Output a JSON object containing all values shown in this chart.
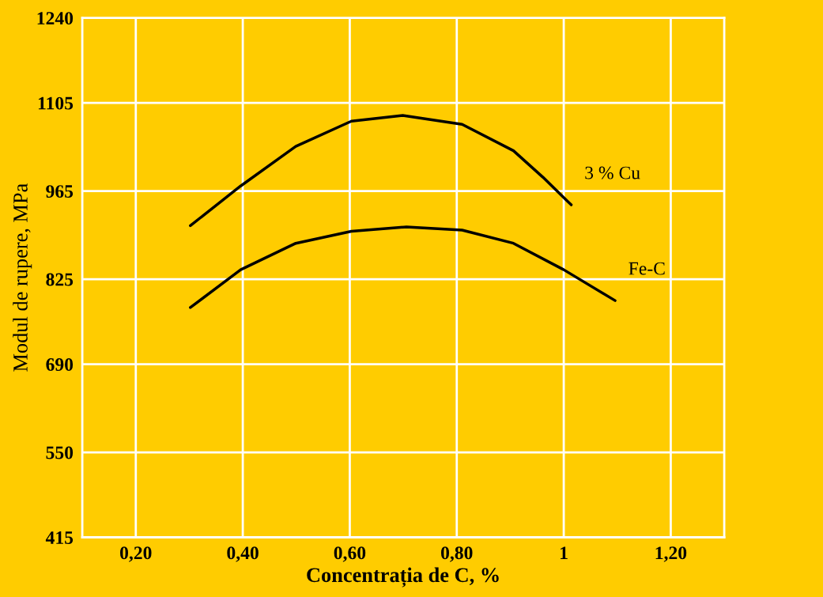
{
  "chart_data": {
    "type": "line",
    "xlabel": "Concentrația de C, %",
    "ylabel": "Modul de rupere, MPa",
    "series": [
      {
        "name": "3 % Cu",
        "color": "#000000",
        "x": [
          0.302,
          0.396,
          0.499,
          0.603,
          0.699,
          0.81,
          0.906,
          0.961,
          1.014
        ],
        "values": [
          910,
          973,
          1036,
          1076,
          1085,
          1071,
          1029,
          987,
          943
        ]
      },
      {
        "name": "Fe-C",
        "color": "#000000",
        "x": [
          0.302,
          0.396,
          0.499,
          0.603,
          0.706,
          0.81,
          0.906,
          1.0,
          1.096
        ],
        "values": [
          780,
          840,
          882,
          901,
          908,
          903,
          882,
          840,
          791
        ]
      }
    ],
    "xlim": [
      0.1,
      1.3
    ],
    "xticks": [
      {
        "value": 0.2,
        "label": "0,20"
      },
      {
        "value": 0.4,
        "label": "0,40"
      },
      {
        "value": 0.6,
        "label": "0,60"
      },
      {
        "value": 0.8,
        "label": "0,80"
      },
      1,
      {
        "value": 1.2,
        "label": "1,20"
      }
    ],
    "ylim": [
      415,
      1240
    ],
    "yticks": [
      415,
      550,
      690,
      825,
      965,
      1105,
      1240
    ],
    "grid": true,
    "marker": "none",
    "line_style": "solid",
    "legend": false
  }
}
